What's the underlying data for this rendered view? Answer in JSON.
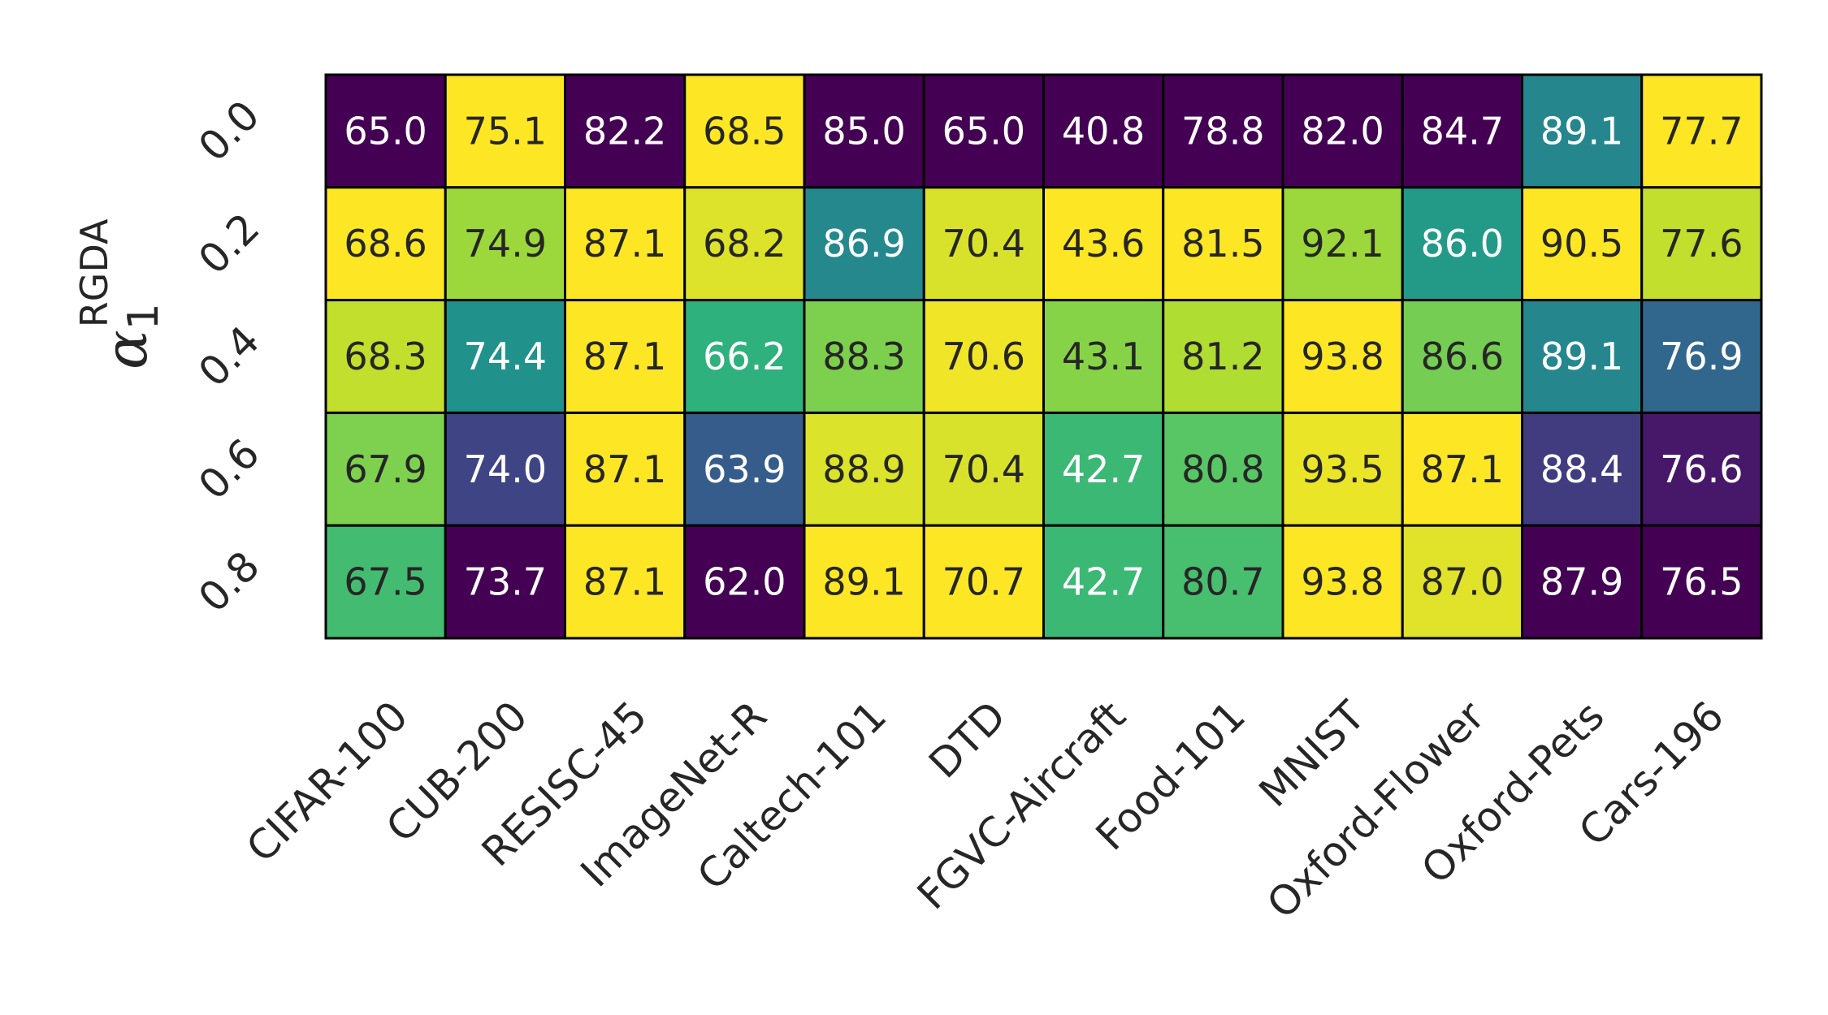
{
  "chart_data": {
    "type": "heatmap",
    "title": "",
    "xlabel": "",
    "ylabel": {
      "symbol": "α",
      "subscript": "1",
      "superscript": "RGDA"
    },
    "colormap": "viridis",
    "color_normalization": "per-column",
    "categories": [
      "CIFAR-100",
      "CUB-200",
      "RESISC-45",
      "ImageNet-R",
      "Caltech-101",
      "DTD",
      "FGVC-Aircraft",
      "Food-101",
      "MNIST",
      "Oxford-Flower",
      "Oxford-Pets",
      "Cars-196"
    ],
    "rows": [
      "0.0",
      "0.2",
      "0.4",
      "0.6",
      "0.8"
    ],
    "values": [
      [
        65.0,
        75.1,
        82.2,
        68.5,
        85.0,
        65.0,
        40.8,
        78.8,
        82.0,
        84.7,
        89.1,
        77.7
      ],
      [
        68.6,
        74.9,
        87.1,
        68.2,
        86.9,
        70.4,
        43.6,
        81.5,
        92.1,
        86.0,
        90.5,
        77.6
      ],
      [
        68.3,
        74.4,
        87.1,
        66.2,
        88.3,
        70.6,
        43.1,
        81.2,
        93.8,
        86.6,
        89.1,
        76.9
      ],
      [
        67.9,
        74.0,
        87.1,
        63.9,
        88.9,
        70.4,
        42.7,
        80.8,
        93.5,
        87.1,
        88.4,
        76.6
      ],
      [
        67.5,
        73.7,
        87.1,
        62.0,
        89.1,
        70.7,
        42.7,
        80.7,
        93.8,
        87.0,
        87.9,
        76.5
      ]
    ],
    "text_colors": {
      "dark": "#262626",
      "light": "#ffffff"
    },
    "grid_line_color": "#000000"
  }
}
